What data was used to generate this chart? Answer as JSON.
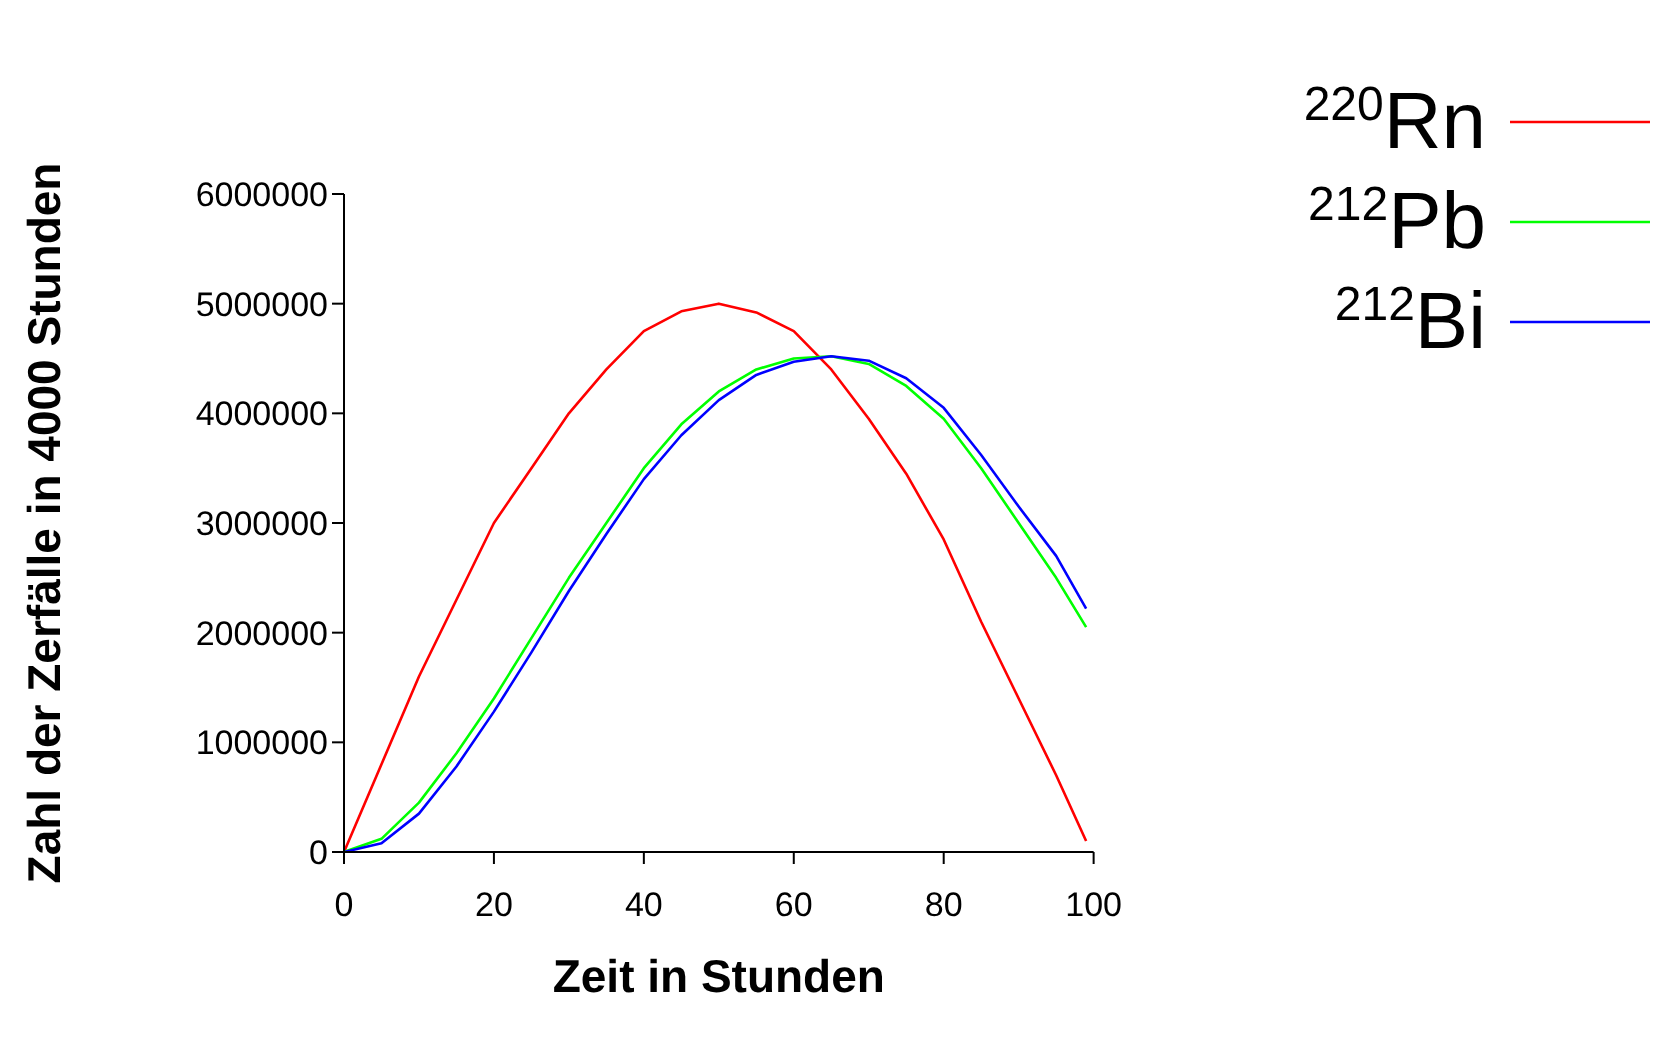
{
  "chart_data": {
    "type": "line",
    "xlabel": "Zeit in Stunden",
    "ylabel": "Zahl der Zerfälle in 4000 Stunden",
    "x": [
      0,
      5,
      10,
      15,
      20,
      25,
      30,
      35,
      40,
      45,
      50,
      55,
      60,
      65,
      70,
      75,
      80,
      85,
      90,
      95,
      99
    ],
    "series": [
      {
        "name": "$^{220}$Rn",
        "color": "#ff0000",
        "values": [
          0,
          800000,
          1600000,
          2300000,
          3000000,
          3500000,
          4000000,
          4400000,
          4750000,
          4930000,
          5000000,
          4920000,
          4750000,
          4400000,
          3950000,
          3450000,
          2850000,
          2100000,
          1400000,
          700000,
          100000
        ]
      },
      {
        "name": "$^{212}$Pb",
        "color": "#00ff00",
        "values": [
          0,
          120000,
          450000,
          900000,
          1400000,
          1950000,
          2500000,
          3000000,
          3500000,
          3900000,
          4200000,
          4400000,
          4500000,
          4520000,
          4450000,
          4250000,
          3950000,
          3500000,
          3000000,
          2500000,
          2050000
        ]
      },
      {
        "name": "$^{212}$Bi",
        "color": "#0000ff",
        "values": [
          0,
          80000,
          350000,
          780000,
          1280000,
          1820000,
          2380000,
          2900000,
          3400000,
          3800000,
          4120000,
          4350000,
          4470000,
          4520000,
          4480000,
          4320000,
          4050000,
          3620000,
          3150000,
          2700000,
          2220000
        ]
      }
    ],
    "xlim": [
      0,
      100
    ],
    "xticks": [
      0,
      20,
      40,
      60,
      80,
      100
    ],
    "ylim": [
      0,
      6000000
    ],
    "yticks": [
      0,
      1000000,
      2000000,
      3000000,
      4000000,
      5000000,
      6000000
    ],
    "grid": false,
    "legend": "top right",
    "marker": "none",
    "line_style": "solid"
  }
}
